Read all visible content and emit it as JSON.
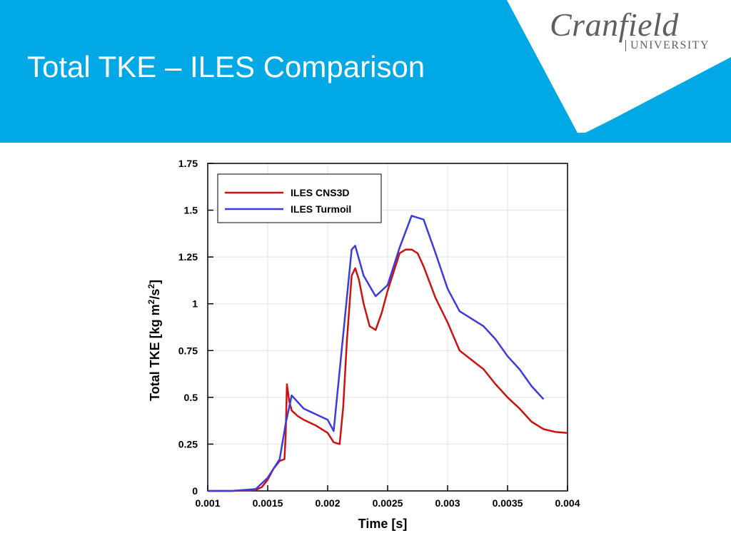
{
  "slide": {
    "title": "Total TKE – ILES Comparison",
    "header_color": "#00a9e6",
    "logo_main": "Cranfield",
    "logo_sub": "UNIVERSITY"
  },
  "chart_data": {
    "type": "line",
    "xlabel": "Time [s]",
    "ylabel_prefix": "Total TKE  [kg m",
    "ylabel_mid": "/s",
    "ylabel_end": "]",
    "ylabel_sup": "2",
    "xlim": [
      0.001,
      0.004
    ],
    "ylim": [
      0,
      1.75
    ],
    "xticks": [
      {
        "value": 0.001,
        "label": "0.001"
      },
      {
        "value": 0.0015,
        "label": "0.0015"
      },
      {
        "value": 0.002,
        "label": "0.002"
      },
      {
        "value": 0.0025,
        "label": "0.0025"
      },
      {
        "value": 0.003,
        "label": "0.003"
      },
      {
        "value": 0.0035,
        "label": "0.0035"
      },
      {
        "value": 0.004,
        "label": "0.004"
      }
    ],
    "yticks": [
      {
        "value": 0,
        "label": "0"
      },
      {
        "value": 0.25,
        "label": "0.25"
      },
      {
        "value": 0.5,
        "label": "0.5"
      },
      {
        "value": 0.75,
        "label": "0.75"
      },
      {
        "value": 1,
        "label": "1"
      },
      {
        "value": 1.25,
        "label": "1.25"
      },
      {
        "value": 1.5,
        "label": "1.5"
      },
      {
        "value": 1.75,
        "label": "1.75"
      }
    ],
    "grid": true,
    "legend_position": "top-left",
    "series": [
      {
        "name": "ILES CNS3D",
        "color": "#cc1111",
        "x": [
          0.001,
          0.0012,
          0.0014,
          0.00145,
          0.0015,
          0.00155,
          0.0016,
          0.00164,
          0.00165,
          0.00166,
          0.00168,
          0.0017,
          0.00175,
          0.0018,
          0.0019,
          0.002,
          0.00205,
          0.0021,
          0.00213,
          0.00216,
          0.0022,
          0.00223,
          0.00226,
          0.0023,
          0.00235,
          0.0024,
          0.00245,
          0.0025,
          0.0026,
          0.00265,
          0.0027,
          0.00275,
          0.0028,
          0.0029,
          0.003,
          0.0031,
          0.0032,
          0.0033,
          0.0034,
          0.0035,
          0.0036,
          0.0037,
          0.0038,
          0.0039,
          0.004
        ],
        "y": [
          0,
          0,
          0.005,
          0.02,
          0.06,
          0.12,
          0.16,
          0.17,
          0.3,
          0.57,
          0.48,
          0.43,
          0.4,
          0.38,
          0.35,
          0.31,
          0.26,
          0.25,
          0.45,
          0.8,
          1.15,
          1.19,
          1.13,
          1.0,
          0.88,
          0.86,
          0.95,
          1.07,
          1.27,
          1.29,
          1.29,
          1.27,
          1.2,
          1.03,
          0.9,
          0.75,
          0.7,
          0.65,
          0.57,
          0.5,
          0.44,
          0.37,
          0.33,
          0.315,
          0.31
        ]
      },
      {
        "name": "ILES Turmoil",
        "color": "#3b3be0",
        "x": [
          0.001,
          0.0012,
          0.0014,
          0.0015,
          0.0016,
          0.00165,
          0.0017,
          0.0018,
          0.0019,
          0.002,
          0.00205,
          0.0022,
          0.00223,
          0.0023,
          0.0024,
          0.0025,
          0.0026,
          0.0027,
          0.0028,
          0.0029,
          0.003,
          0.0031,
          0.0032,
          0.0033,
          0.0034,
          0.0035,
          0.0036,
          0.0037,
          0.0038
        ],
        "y": [
          0,
          0,
          0.01,
          0.07,
          0.17,
          0.36,
          0.51,
          0.44,
          0.41,
          0.38,
          0.32,
          1.29,
          1.31,
          1.15,
          1.04,
          1.1,
          1.3,
          1.47,
          1.45,
          1.27,
          1.08,
          0.96,
          0.92,
          0.88,
          0.81,
          0.72,
          0.65,
          0.56,
          0.49
        ]
      }
    ]
  }
}
